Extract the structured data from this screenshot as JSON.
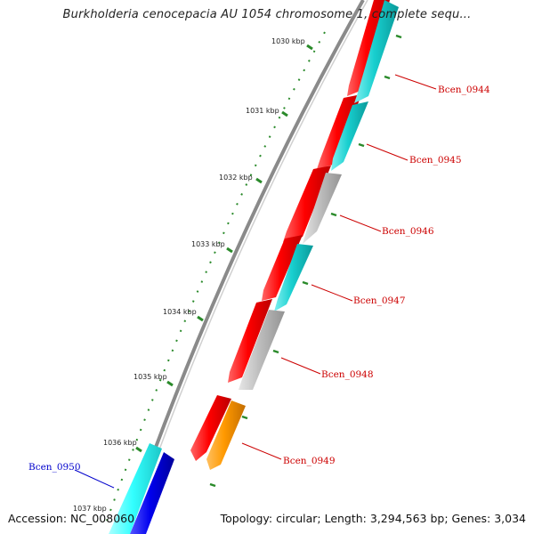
{
  "title": "Burkholderia cenocepacia AU 1054 chromosome 1, complete sequ...",
  "footer": {
    "accession": "Accession: NC_008060",
    "stats": "Topology: circular; Length: 3,294,563 bp; Genes: 3,034"
  },
  "colors": {
    "backbone": "#8a8a8a",
    "tick": "#2a8a2a",
    "label_red": "#cc0000",
    "label_blue": "#0000cc",
    "gene_red": "#ff0000",
    "gene_cyan": "#18cfcf",
    "gene_gray": "#bdbdbd",
    "gene_orange": "#ff9900",
    "gene_blue": "#0000ee",
    "gene_lightcyan": "#33ffff"
  },
  "kbp_labels": [
    "1030 kbp",
    "1031 kbp",
    "1032 kbp",
    "1033 kbp",
    "1034 kbp",
    "1035 kbp",
    "1036 kbp",
    "1037 kbp"
  ],
  "gene_labels": [
    {
      "name": "Bcen_0944",
      "color": "red"
    },
    {
      "name": "Bcen_0945",
      "color": "red"
    },
    {
      "name": "Bcen_0946",
      "color": "red"
    },
    {
      "name": "Bcen_0947",
      "color": "red"
    },
    {
      "name": "Bcen_0948",
      "color": "red"
    },
    {
      "name": "Bcen_0949",
      "color": "red"
    },
    {
      "name": "Bcen_0950",
      "color": "blue"
    }
  ]
}
